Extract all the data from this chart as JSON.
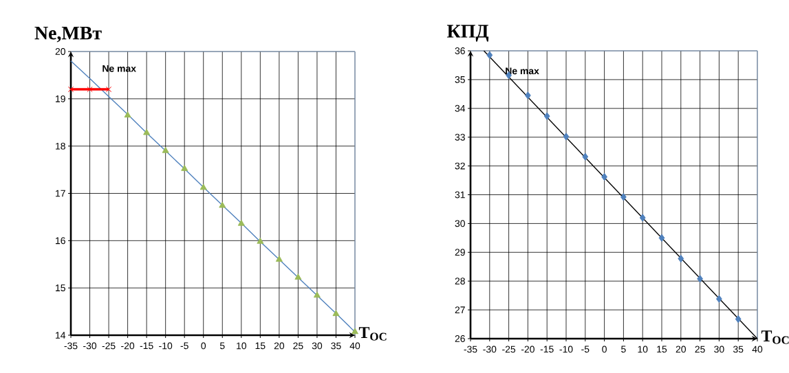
{
  "chart_data": [
    {
      "type": "line",
      "ylabel": "Ne,МВт",
      "xlabel": "Т$_{ОС}$",
      "xlim": [
        -35,
        40
      ],
      "ylim": [
        14,
        20
      ],
      "xticks": [
        -35,
        -30,
        -25,
        -20,
        -15,
        -10,
        -5,
        0,
        5,
        10,
        15,
        20,
        25,
        30,
        35,
        40
      ],
      "yticks": [
        14,
        15,
        16,
        17,
        18,
        19,
        20
      ],
      "grid": true,
      "series": [
        {
          "color": "#4f81bd",
          "marker": "none",
          "x": [
            -35,
            -30,
            -25,
            -20,
            -15,
            -10,
            -5,
            0,
            5,
            10,
            15,
            20,
            25,
            30,
            35,
            40
          ],
          "values": [
            19.8,
            19.43,
            19.05,
            18.67,
            18.28,
            17.9,
            17.52,
            17.13,
            16.75,
            16.37,
            15.98,
            15.6,
            15.22,
            14.84,
            14.46,
            14.07
          ]
        },
        {
          "type": "scatter",
          "color": "#9bbb59",
          "marker": "triangle",
          "x": [
            -20,
            -15,
            -10,
            -5,
            0,
            5,
            10,
            15,
            20,
            25,
            30,
            35,
            40
          ],
          "values": [
            18.65,
            18.28,
            17.9,
            17.52,
            17.12,
            16.74,
            16.36,
            15.98,
            15.6,
            15.22,
            14.84,
            14.45,
            14.07
          ]
        },
        {
          "color": "#ff0000",
          "marker": "cross",
          "x": [
            -35,
            -30,
            -25
          ],
          "values": [
            19.2,
            19.2,
            19.2
          ]
        }
      ],
      "annotations": [
        "Ne max"
      ]
    },
    {
      "type": "line",
      "ylabel": "КПД",
      "xlabel": "Т$_{ОС}$",
      "xlim": [
        -35,
        40
      ],
      "ylim": [
        26,
        36
      ],
      "xticks": [
        -35,
        -30,
        -25,
        -20,
        -15,
        -10,
        -5,
        0,
        5,
        10,
        15,
        20,
        25,
        30,
        35,
        40
      ],
      "yticks": [
        26,
        27,
        28,
        29,
        30,
        31,
        32,
        33,
        34,
        35,
        36
      ],
      "grid": true,
      "series": [
        {
          "type": "scatter",
          "color": "#4f81bd",
          "marker": "diamond",
          "x": [
            -30,
            -25,
            -20,
            -15,
            -10,
            -5,
            0,
            5,
            10,
            15,
            20,
            25,
            30,
            35
          ],
          "values": [
            35.85,
            35.15,
            34.45,
            33.73,
            33.02,
            32.32,
            31.62,
            30.92,
            30.2,
            29.5,
            28.78,
            28.08,
            27.38,
            26.68
          ]
        },
        {
          "color": "#000000",
          "marker": "none",
          "x": [
            -31.5,
            40
          ],
          "values": [
            36,
            26
          ]
        }
      ],
      "annotations": [
        "Ne max"
      ]
    }
  ]
}
